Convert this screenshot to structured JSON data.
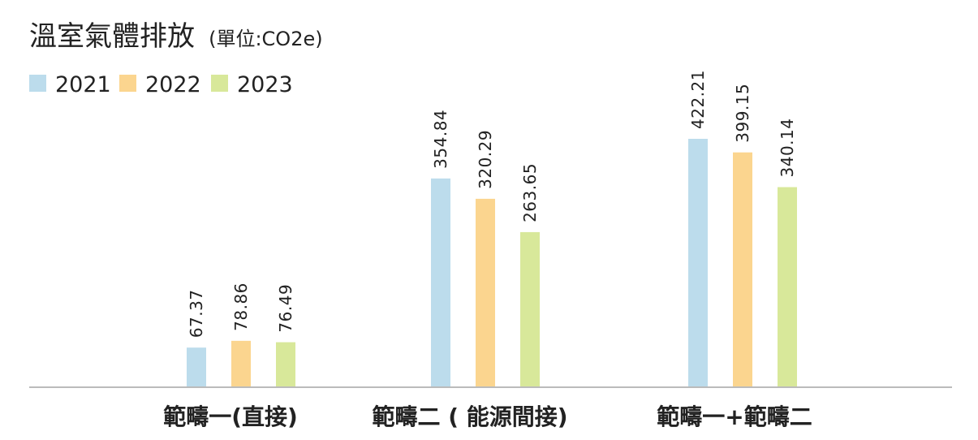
{
  "chart_data": {
    "type": "bar",
    "title": "溫室氣體排放",
    "unit_label": "(單位:CO2e)",
    "categories": [
      "範疇一(直接)",
      "範疇二 ( 能源間接)",
      "範疇一+範疇二"
    ],
    "series": [
      {
        "name": "2021",
        "color": "#bcdcec",
        "values": [
          67.37,
          354.84,
          422.21
        ],
        "labels": [
          "67.37",
          "354.84",
          "422.21"
        ]
      },
      {
        "name": "2022",
        "color": "#fbd58f",
        "values": [
          78.86,
          320.29,
          399.15
        ],
        "labels": [
          "78.86",
          "320.29",
          "399.15"
        ]
      },
      {
        "name": "2023",
        "color": "#d8e89a",
        "values": [
          76.49,
          263.65,
          340.14
        ],
        "labels": [
          "76.49",
          "263.65",
          "340.14"
        ]
      }
    ],
    "ylim": [
      0,
      465
    ],
    "grid": false,
    "legend_position": "top-left",
    "baseline_color": "#bbbbbb"
  }
}
